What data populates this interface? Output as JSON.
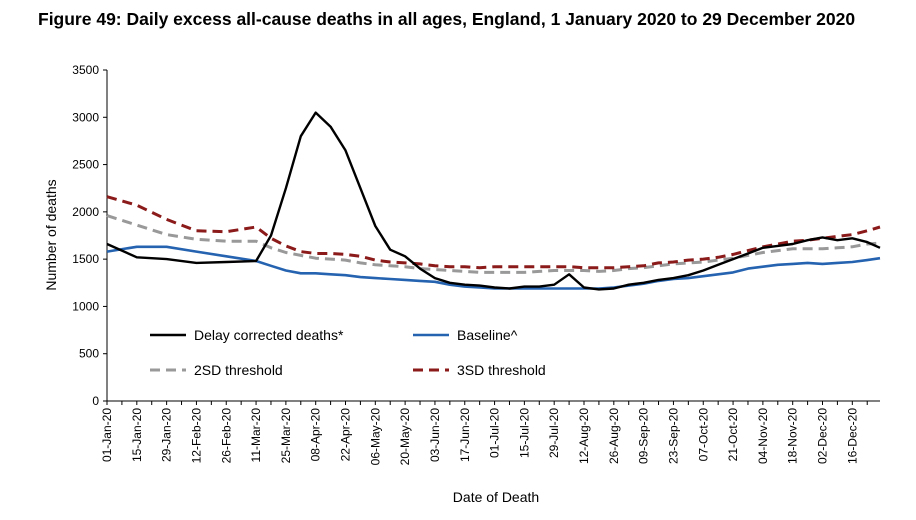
{
  "title": "Figure 49: Daily excess all-cause deaths in all ages, England, 1 January 2020 to 29 December 2020",
  "chart_data": {
    "type": "line",
    "title": "Figure 49: Daily excess all-cause deaths in all ages, England, 1 January 2020 to 29 December 2020",
    "xlabel": "Date of Death",
    "ylabel": "Number of deaths",
    "ylim": [
      0,
      3500
    ],
    "yticks": [
      "0",
      "500",
      "1000",
      "1500",
      "2000",
      "2500",
      "3000",
      "3500"
    ],
    "xticks": [
      "01-Jan-20",
      "15-Jan-20",
      "29-Jan-20",
      "12-Feb-20",
      "26-Feb-20",
      "11-Mar-20",
      "25-Mar-20",
      "08-Apr-20",
      "22-Apr-20",
      "06-May-20",
      "20-May-20",
      "03-Jun-20",
      "17-Jun-20",
      "01-Jul-20",
      "15-Jul-20",
      "29-Jul-20",
      "12-Aug-20",
      "26-Aug-20",
      "09-Sep-20",
      "23-Sep-20",
      "07-Oct-20",
      "21-Oct-20",
      "04-Nov-20",
      "18-Nov-20",
      "02-Dec-20",
      "16-Dec-20"
    ],
    "x": [
      "2020-01-01",
      "2020-01-15",
      "2020-01-29",
      "2020-02-12",
      "2020-02-26",
      "2020-03-11",
      "2020-03-18",
      "2020-03-25",
      "2020-04-01",
      "2020-04-08",
      "2020-04-15",
      "2020-04-22",
      "2020-04-29",
      "2020-05-06",
      "2020-05-13",
      "2020-05-20",
      "2020-05-27",
      "2020-06-03",
      "2020-06-10",
      "2020-06-17",
      "2020-06-24",
      "2020-07-01",
      "2020-07-08",
      "2020-07-15",
      "2020-07-22",
      "2020-07-29",
      "2020-08-05",
      "2020-08-12",
      "2020-08-19",
      "2020-08-26",
      "2020-09-02",
      "2020-09-09",
      "2020-09-16",
      "2020-09-23",
      "2020-09-30",
      "2020-10-07",
      "2020-10-14",
      "2020-10-21",
      "2020-10-28",
      "2020-11-04",
      "2020-11-11",
      "2020-11-18",
      "2020-11-25",
      "2020-12-02",
      "2020-12-09",
      "2020-12-16",
      "2020-12-23",
      "2020-12-29"
    ],
    "series": [
      {
        "name": "Delay corrected deaths*",
        "color": "#000000",
        "dash": "solid",
        "values": [
          1660,
          1520,
          1500,
          1460,
          1470,
          1480,
          1750,
          2250,
          2800,
          3050,
          2900,
          2650,
          2250,
          1850,
          1600,
          1530,
          1400,
          1300,
          1250,
          1230,
          1220,
          1200,
          1190,
          1210,
          1210,
          1230,
          1340,
          1200,
          1180,
          1190,
          1230,
          1250,
          1280,
          1300,
          1330,
          1380,
          1440,
          1500,
          1560,
          1620,
          1640,
          1660,
          1700,
          1730,
          1700,
          1720,
          1680,
          1620
        ]
      },
      {
        "name": "Baseline^",
        "color": "#2563b0",
        "dash": "solid",
        "values": [
          1580,
          1630,
          1630,
          1580,
          1530,
          1480,
          1430,
          1380,
          1350,
          1350,
          1340,
          1330,
          1310,
          1300,
          1290,
          1280,
          1270,
          1260,
          1230,
          1210,
          1200,
          1190,
          1190,
          1190,
          1190,
          1190,
          1190,
          1190,
          1190,
          1200,
          1220,
          1240,
          1270,
          1290,
          1300,
          1320,
          1340,
          1360,
          1400,
          1420,
          1440,
          1450,
          1460,
          1450,
          1460,
          1470,
          1490,
          1510
        ]
      },
      {
        "name": "2SD threshold",
        "color": "#999999",
        "dash": "dashed",
        "values": [
          1960,
          1860,
          1760,
          1710,
          1690,
          1690,
          1620,
          1570,
          1540,
          1510,
          1500,
          1490,
          1460,
          1440,
          1430,
          1420,
          1400,
          1390,
          1380,
          1370,
          1360,
          1360,
          1360,
          1360,
          1370,
          1380,
          1380,
          1380,
          1370,
          1380,
          1400,
          1410,
          1430,
          1450,
          1460,
          1470,
          1490,
          1510,
          1540,
          1570,
          1590,
          1610,
          1610,
          1610,
          1620,
          1630,
          1660,
          1670
        ]
      },
      {
        "name": "3SD threshold",
        "color": "#8b1a1a",
        "dash": "dashed",
        "values": [
          2160,
          2070,
          1920,
          1800,
          1790,
          1840,
          1720,
          1640,
          1580,
          1560,
          1560,
          1550,
          1530,
          1490,
          1470,
          1460,
          1450,
          1430,
          1420,
          1420,
          1410,
          1420,
          1420,
          1420,
          1420,
          1420,
          1420,
          1410,
          1410,
          1410,
          1420,
          1430,
          1460,
          1470,
          1490,
          1500,
          1520,
          1550,
          1590,
          1630,
          1660,
          1690,
          1700,
          1720,
          1740,
          1760,
          1800,
          1840
        ]
      }
    ],
    "legend": {
      "placement": "bottom-left inside plot",
      "entries": [
        "Delay corrected deaths*",
        "Baseline^",
        "2SD threshold",
        "3SD threshold"
      ]
    },
    "grid": false
  }
}
